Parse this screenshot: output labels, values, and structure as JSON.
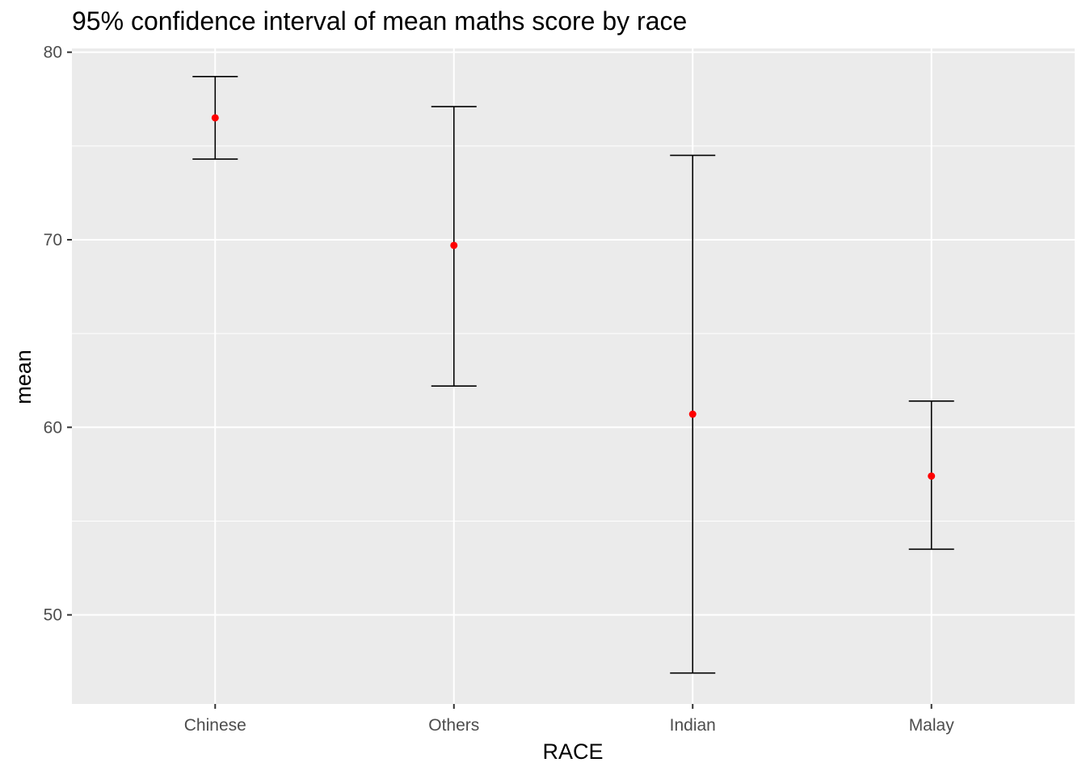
{
  "chart_data": {
    "type": "errorbar",
    "title": "95% confidence interval of mean maths score by race",
    "xlabel": "RACE",
    "ylabel": "mean",
    "categories": [
      "Chinese",
      "Others",
      "Indian",
      "Malay"
    ],
    "series": [
      {
        "mean": [
          76.5,
          69.7,
          60.7,
          57.4
        ],
        "lower": [
          74.3,
          62.2,
          46.9,
          53.5
        ],
        "upper": [
          78.7,
          77.1,
          74.5,
          61.4
        ]
      }
    ],
    "yticks": [
      50,
      60,
      70,
      80
    ],
    "ylim": [
      45.25,
      80.2
    ],
    "grid": true,
    "point_color": "#FF0000",
    "bar_color": "#000000",
    "panel_background": "#EBEBEB",
    "grid_color": "#FFFFFF"
  }
}
